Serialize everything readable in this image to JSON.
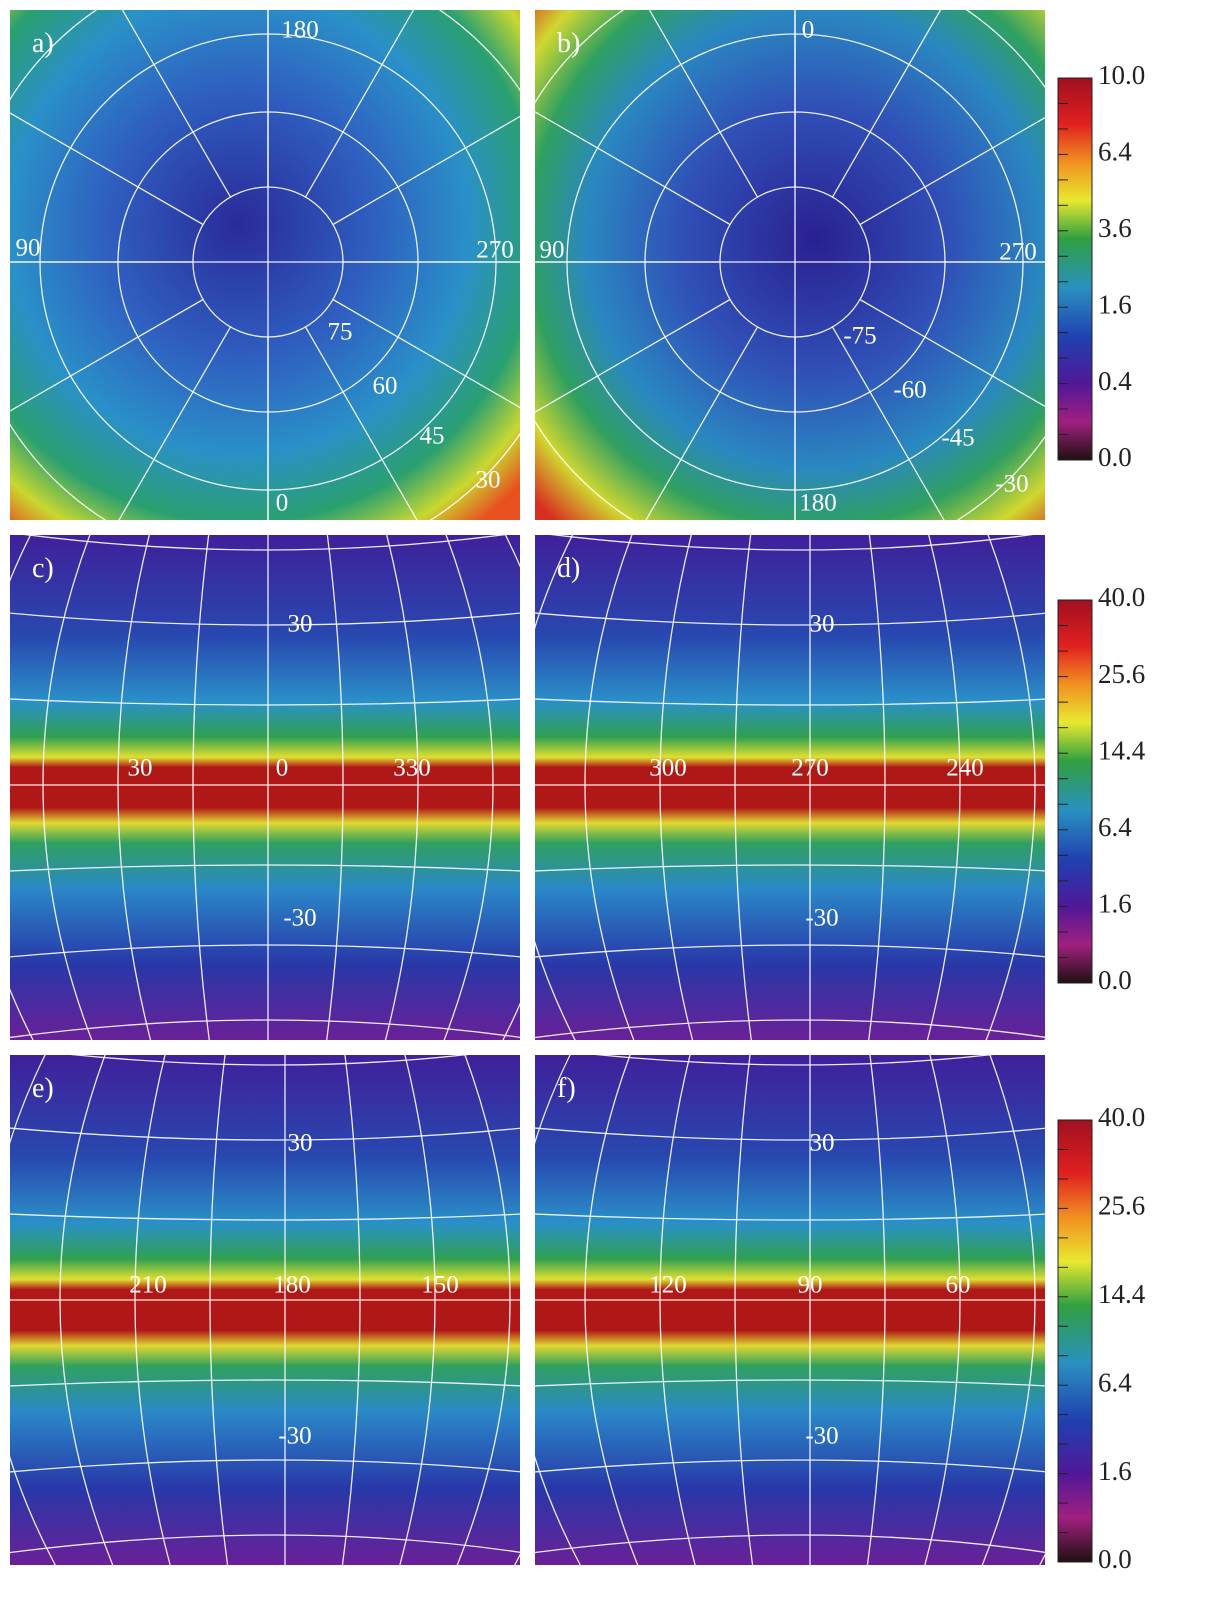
{
  "panels": [
    {
      "label": "a)",
      "grid_labels": [
        "180",
        "90",
        "270",
        "75",
        "60",
        "45",
        "30",
        "0"
      ]
    },
    {
      "label": "b)",
      "grid_labels": [
        "0",
        "90",
        "270",
        "-75",
        "-60",
        "-45",
        "-30",
        "180"
      ]
    },
    {
      "label": "c)",
      "grid_labels": [
        "30",
        "30",
        "0",
        "330",
        "-30"
      ]
    },
    {
      "label": "d)",
      "grid_labels": [
        "30",
        "300",
        "270",
        "240",
        "-30"
      ]
    },
    {
      "label": "e)",
      "grid_labels": [
        "30",
        "210",
        "180",
        "150",
        "-30"
      ]
    },
    {
      "label": "f)",
      "grid_labels": [
        "30",
        "120",
        "90",
        "60",
        "-30"
      ]
    }
  ],
  "colorbars": [
    {
      "ticks": [
        "10.0",
        "6.4",
        "3.6",
        "1.6",
        "0.4",
        "0.0"
      ]
    },
    {
      "ticks": [
        "40.0",
        "25.6",
        "14.4",
        "6.4",
        "1.6",
        "0.0"
      ]
    },
    {
      "ticks": [
        "40.0",
        "25.6",
        "14.4",
        "6.4",
        "1.6",
        "0.0"
      ]
    }
  ]
}
